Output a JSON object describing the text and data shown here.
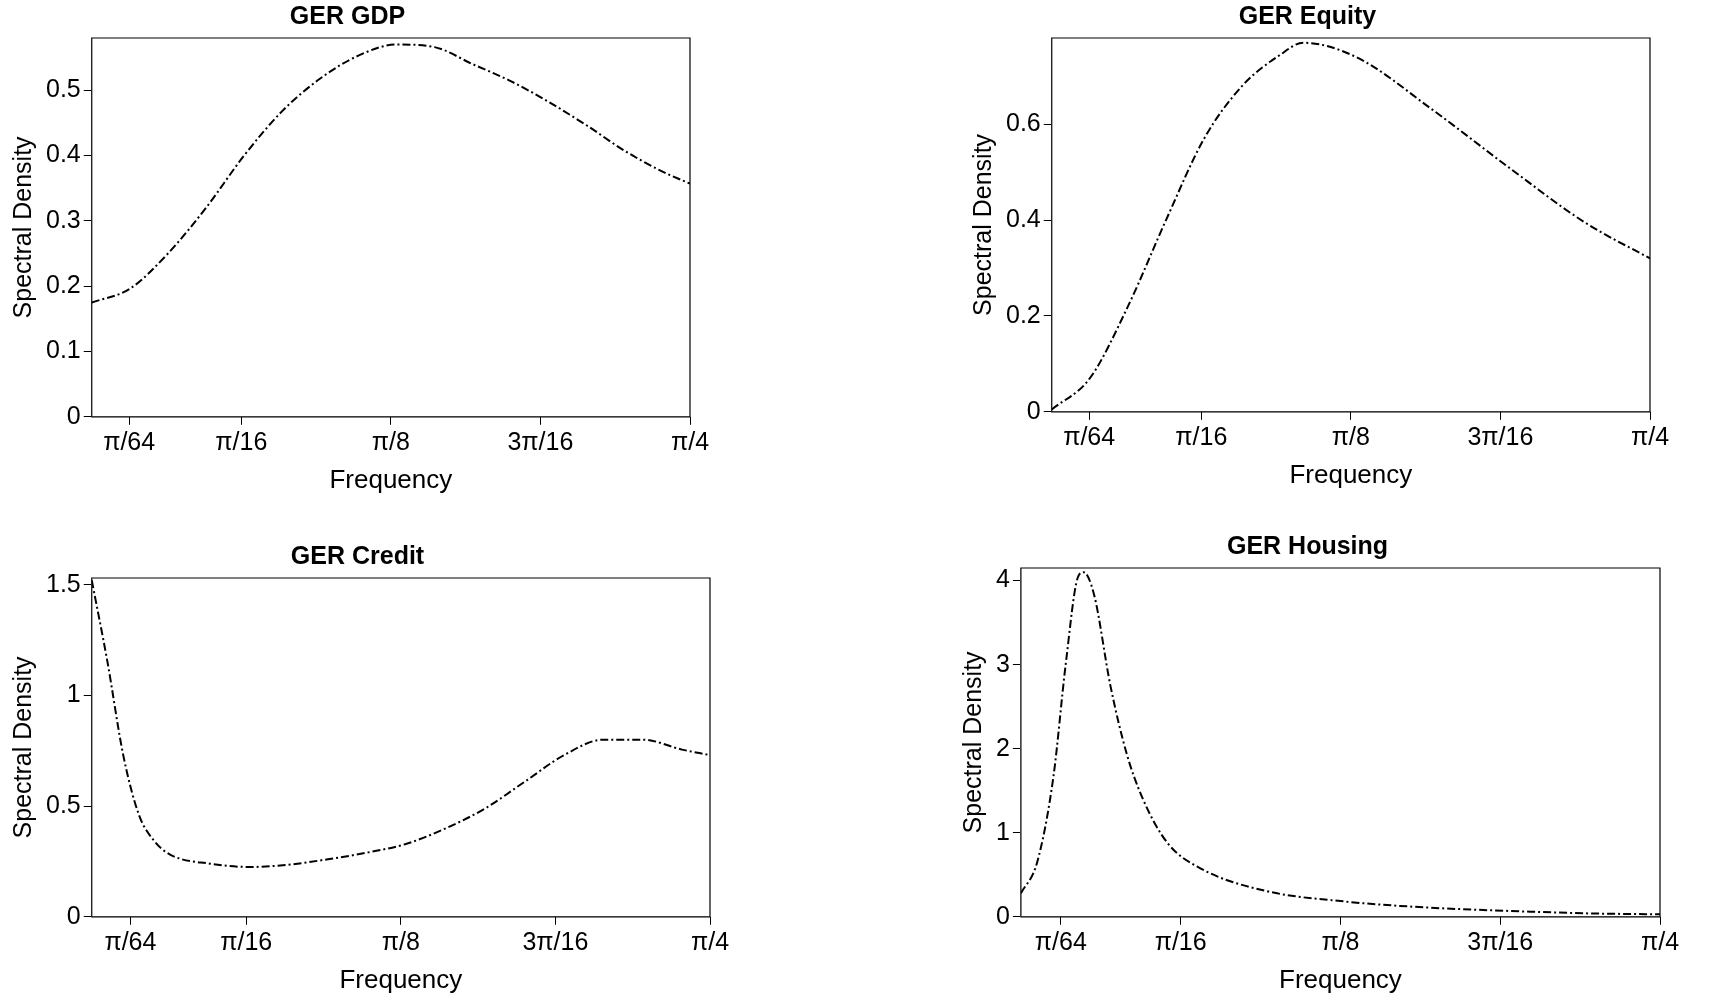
{
  "chart_data": [
    {
      "type": "line",
      "title": "GER GDP",
      "xlabel": "Frequency",
      "ylabel": "Spectral Density",
      "line_style": "dashed",
      "grid": false,
      "legend": false,
      "xlim": [
        0,
        0.7854
      ],
      "xticks": [
        {
          "value": 0.0491,
          "label": "π/64"
        },
        {
          "value": 0.1963,
          "label": "π/16"
        },
        {
          "value": 0.3927,
          "label": "π/8"
        },
        {
          "value": 0.589,
          "label": "3π/16"
        },
        {
          "value": 0.7854,
          "label": "π/4"
        }
      ],
      "ylim": [
        0,
        0.58
      ],
      "yticks": [
        0,
        0.1,
        0.2,
        0.3,
        0.4,
        0.5
      ],
      "series": [
        {
          "color": "#000000",
          "x": [
            0,
            0.05,
            0.1,
            0.15,
            0.2,
            0.25,
            0.3,
            0.35,
            0.4,
            0.45,
            0.5,
            0.55,
            0.6,
            0.65,
            0.7,
            0.75,
            0.7854
          ],
          "values": [
            0.175,
            0.196,
            0.25,
            0.32,
            0.4,
            0.468,
            0.518,
            0.553,
            0.57,
            0.566,
            0.54,
            0.514,
            0.482,
            0.446,
            0.407,
            0.375,
            0.357
          ]
        }
      ]
    },
    {
      "type": "line",
      "title": "GER Equity",
      "xlabel": "Frequency",
      "ylabel": "Spectral Density",
      "line_style": "dashed",
      "grid": false,
      "legend": false,
      "xlim": [
        0,
        0.7854
      ],
      "xticks": [
        {
          "value": 0.0491,
          "label": "π/64"
        },
        {
          "value": 0.1963,
          "label": "π/16"
        },
        {
          "value": 0.3927,
          "label": "π/8"
        },
        {
          "value": 0.589,
          "label": "3π/16"
        },
        {
          "value": 0.7854,
          "label": "π/4"
        }
      ],
      "ylim": [
        0,
        0.78
      ],
      "yticks": [
        0,
        0.2,
        0.4,
        0.6
      ],
      "series": [
        {
          "color": "#000000",
          "x": [
            0,
            0.05,
            0.1,
            0.15,
            0.2,
            0.25,
            0.3,
            0.33,
            0.4,
            0.5,
            0.6,
            0.7,
            0.7854
          ],
          "values": [
            0.005,
            0.07,
            0.22,
            0.4,
            0.57,
            0.68,
            0.745,
            0.77,
            0.74,
            0.63,
            0.51,
            0.395,
            0.32
          ]
        }
      ]
    },
    {
      "type": "line",
      "title": "GER Credit",
      "xlabel": "Frequency",
      "ylabel": "Spectral Density",
      "line_style": "dashed",
      "grid": false,
      "legend": false,
      "xlim": [
        0,
        0.7854
      ],
      "xticks": [
        {
          "value": 0.0491,
          "label": "π/64"
        },
        {
          "value": 0.1963,
          "label": "π/16"
        },
        {
          "value": 0.3927,
          "label": "π/8"
        },
        {
          "value": 0.589,
          "label": "3π/16"
        },
        {
          "value": 0.7854,
          "label": "π/4"
        }
      ],
      "ylim": [
        0,
        1.53
      ],
      "yticks": [
        0,
        0.5,
        1,
        1.5
      ],
      "series": [
        {
          "color": "#000000",
          "x": [
            0,
            0.02,
            0.04,
            0.06,
            0.08,
            0.1,
            0.15,
            0.2,
            0.25,
            0.3,
            0.35,
            0.4,
            0.45,
            0.5,
            0.55,
            0.6,
            0.65,
            0.7,
            0.75,
            0.7854
          ],
          "values": [
            1.52,
            1.15,
            0.73,
            0.46,
            0.34,
            0.28,
            0.24,
            0.225,
            0.235,
            0.26,
            0.29,
            0.33,
            0.4,
            0.49,
            0.61,
            0.73,
            0.8,
            0.8,
            0.755,
            0.73
          ]
        }
      ]
    },
    {
      "type": "line",
      "title": "GER Housing",
      "xlabel": "Frequency",
      "ylabel": "Spectral Density",
      "line_style": "dashed",
      "grid": false,
      "legend": false,
      "xlim": [
        0,
        0.7854
      ],
      "xticks": [
        {
          "value": 0.0491,
          "label": "π/64"
        },
        {
          "value": 0.1963,
          "label": "π/16"
        },
        {
          "value": 0.3927,
          "label": "π/8"
        },
        {
          "value": 0.589,
          "label": "3π/16"
        },
        {
          "value": 0.7854,
          "label": "π/4"
        }
      ],
      "ylim": [
        0,
        4.15
      ],
      "yticks": [
        0,
        1,
        2,
        3,
        4
      ],
      "series": [
        {
          "color": "#000000",
          "x": [
            0,
            0.02,
            0.04,
            0.055,
            0.07,
            0.077,
            0.09,
            0.11,
            0.13,
            0.15,
            0.18,
            0.22,
            0.3,
            0.4,
            0.5,
            0.6,
            0.7,
            0.7854
          ],
          "values": [
            0.28,
            0.65,
            1.67,
            3.0,
            4.04,
            4.1,
            3.83,
            2.75,
            1.94,
            1.4,
            0.88,
            0.58,
            0.31,
            0.18,
            0.11,
            0.07,
            0.04,
            0.03
          ]
        }
      ]
    }
  ]
}
